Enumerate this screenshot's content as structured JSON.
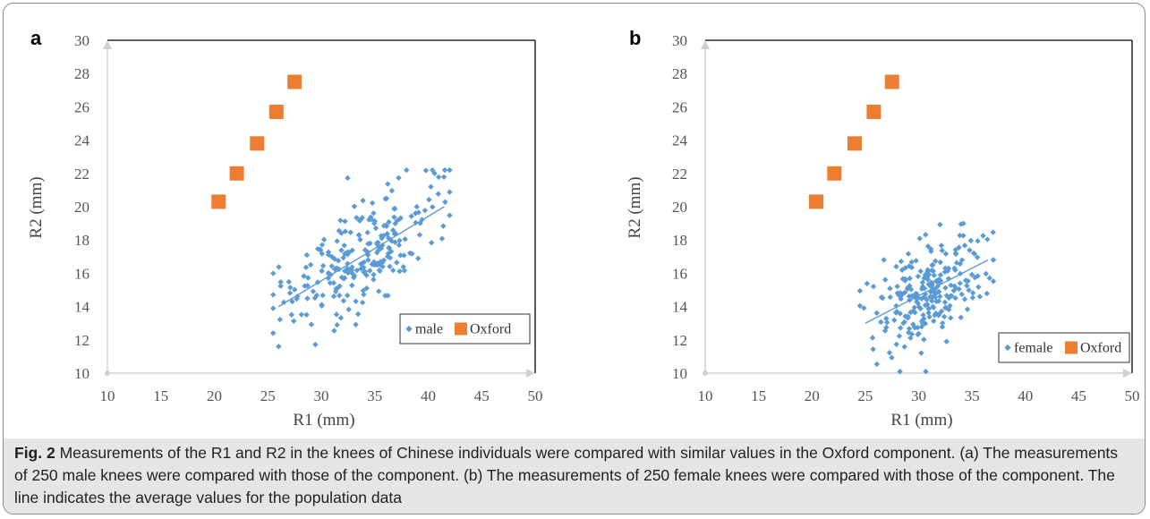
{
  "caption": {
    "label": "Fig. 2",
    "text": " Measurements of the R1 and R2 in the knees of Chinese individuals were compared with similar values in the Oxford component. (a) The measurements of 250 male knees were compared with those of the component. (b) The measurements of 250 female knees were compared with those of the component. The line indicates the average values for the population data"
  },
  "colors": {
    "population": "#5b9bd5",
    "oxford": "#ed7d31",
    "axis": "#000000",
    "grid_axis": "#d0d0d0"
  },
  "chart_data": [
    {
      "panel": "a",
      "type": "scatter",
      "xlabel": "R1 (mm)",
      "ylabel": "R2 (mm)",
      "xlim": [
        10,
        50
      ],
      "ylim": [
        10,
        30
      ],
      "xticks": [
        "10",
        "15",
        "20",
        "25",
        "30",
        "35",
        "40",
        "45",
        "50"
      ],
      "yticks": [
        "10",
        "12",
        "14",
        "16",
        "18",
        "20",
        "22",
        "24",
        "26",
        "28",
        "30"
      ],
      "legend": {
        "position": "bottom-right",
        "entries": [
          "male",
          "Oxford"
        ]
      },
      "series": [
        {
          "name": "male",
          "marker": "diamond",
          "n": 250,
          "trend_line": {
            "x": [
              26,
              41.5
            ],
            "y": [
              14.0,
              20.0
            ]
          },
          "cloud": {
            "x_mean": 34,
            "x_sd": 3.8,
            "y_intercept": 3.94,
            "slope": 0.387,
            "y_resid_sd": 1.6,
            "x_min": 25.5,
            "x_max": 42,
            "y_min": 11.6,
            "y_max": 22.2
          }
        },
        {
          "name": "Oxford",
          "marker": "square",
          "points": [
            [
              20.4,
              20.3
            ],
            [
              22.1,
              22.0
            ],
            [
              24.0,
              23.8
            ],
            [
              25.8,
              25.7
            ],
            [
              27.5,
              27.5
            ]
          ]
        }
      ]
    },
    {
      "panel": "b",
      "type": "scatter",
      "xlabel": "R1 (mm)",
      "ylabel": "R2 (mm)",
      "xlim": [
        10,
        50
      ],
      "ylim": [
        10,
        30
      ],
      "xticks": [
        "10",
        "15",
        "20",
        "25",
        "30",
        "35",
        "40",
        "45",
        "50"
      ],
      "yticks": [
        "10",
        "12",
        "14",
        "16",
        "18",
        "20",
        "22",
        "24",
        "26",
        "28",
        "30"
      ],
      "legend": {
        "position": "bottom-right",
        "entries": [
          "female",
          "Oxford"
        ]
      },
      "series": [
        {
          "name": "female",
          "marker": "diamond",
          "n": 250,
          "trend_line": {
            "x": [
              25,
              36.5
            ],
            "y": [
              13.0,
              16.8
            ]
          },
          "cloud": {
            "x_mean": 31,
            "x_sd": 2.6,
            "y_intercept": 4.74,
            "slope": 0.33,
            "y_resid_sd": 1.5,
            "x_min": 24.5,
            "x_max": 37,
            "y_min": 10.1,
            "y_max": 20.5
          }
        },
        {
          "name": "Oxford",
          "marker": "square",
          "points": [
            [
              20.4,
              20.3
            ],
            [
              22.1,
              22.0
            ],
            [
              24.0,
              23.8
            ],
            [
              25.8,
              25.7
            ],
            [
              27.5,
              27.5
            ]
          ]
        }
      ]
    }
  ]
}
